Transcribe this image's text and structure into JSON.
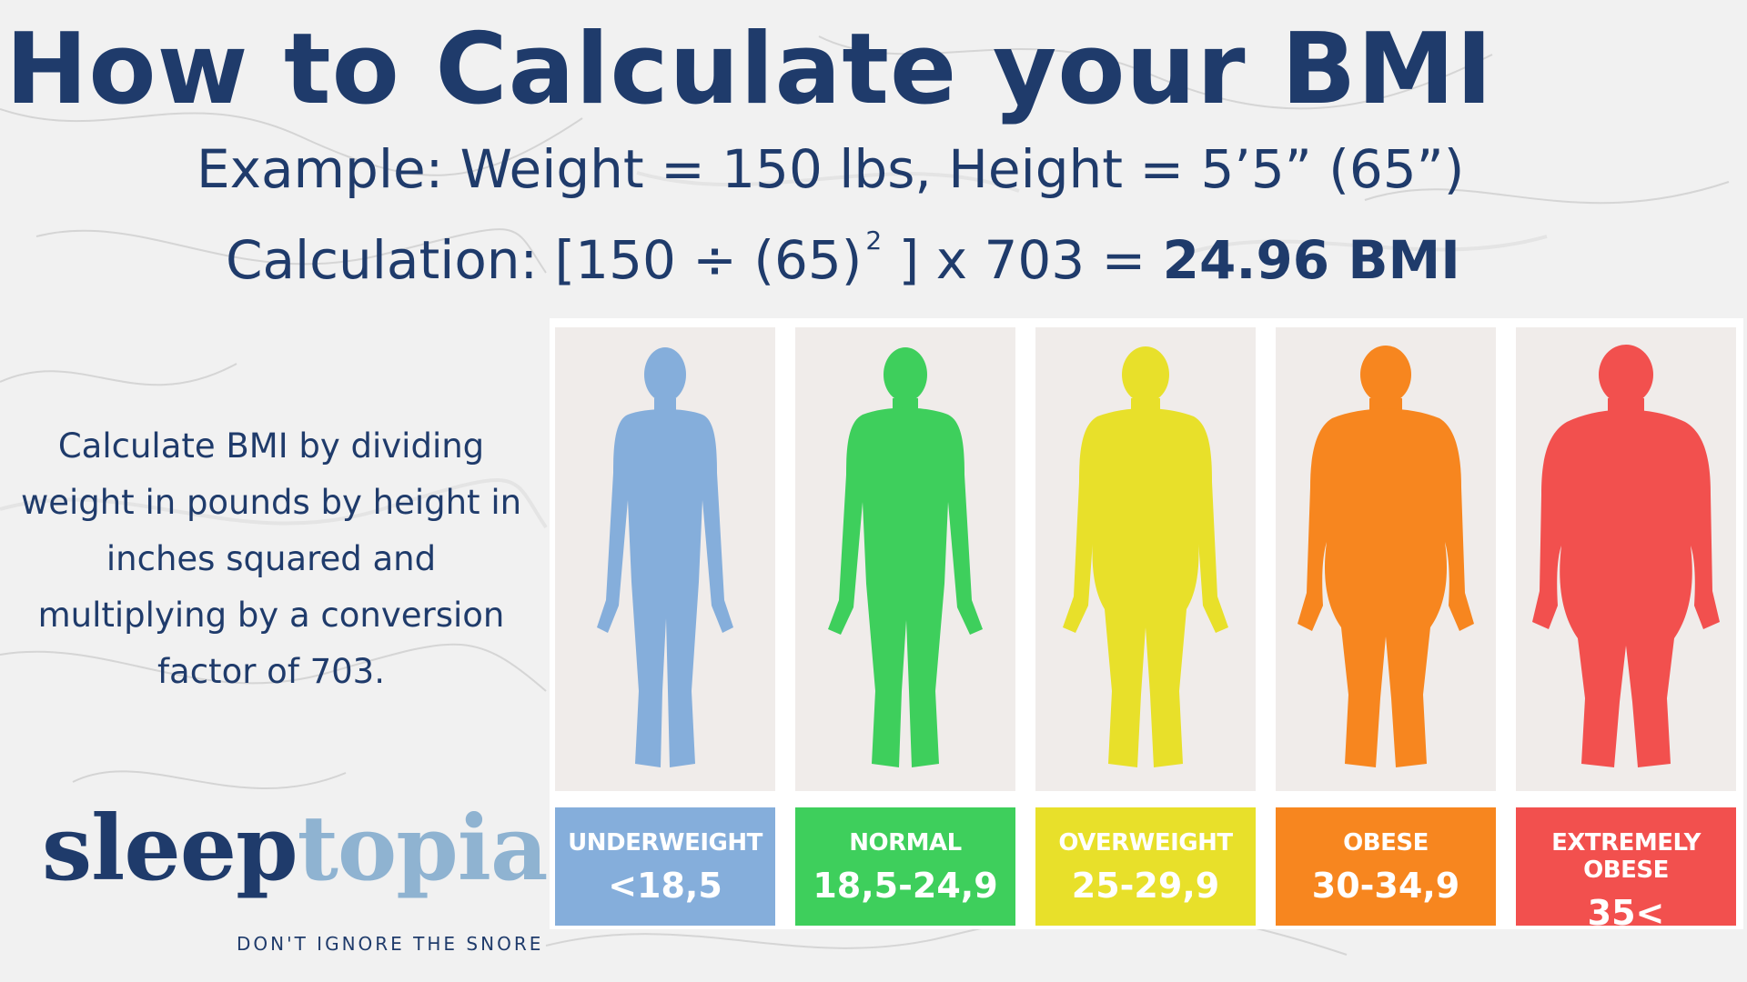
{
  "title": "How to Calculate your BMI",
  "example": "Example: Weight = 150 lbs, Height = 5’5” (65”)",
  "calculation": {
    "lead": "Calculation: [150 ÷ (65)",
    "exponent": "2",
    "mid": " ] x 703 = ",
    "result": "24.96 BMI"
  },
  "description": "Calculate BMI by dividing weight in pounds by height in inches squared and multiplying by a conversion factor of 703.",
  "categories": [
    {
      "name": "UNDERWEIGHT",
      "range": "<18,5",
      "color": "#85aedb",
      "figure": "underweight-silhouette-icon"
    },
    {
      "name": "NORMAL",
      "range": "18,5-24,9",
      "color": "#3ecf5c",
      "figure": "normal-silhouette-icon"
    },
    {
      "name": "OVERWEIGHT",
      "range": "25-29,9",
      "color": "#e8e02a",
      "figure": "overweight-silhouette-icon"
    },
    {
      "name": "OBESE",
      "range": "30-34,9",
      "color": "#f7861f",
      "figure": "obese-silhouette-icon"
    },
    {
      "name": "EXTREMELY OBESE",
      "range": "35<",
      "color": "#f2504e",
      "figure": "extremely-obese-silhouette-icon"
    }
  ],
  "brand": {
    "logo_part1": "sleep",
    "logo_part2": "topia",
    "tagline": "DON'T IGNORE THE SNORE",
    "primary_color": "#1f3b6b",
    "secondary_color": "#8fb3d1"
  }
}
